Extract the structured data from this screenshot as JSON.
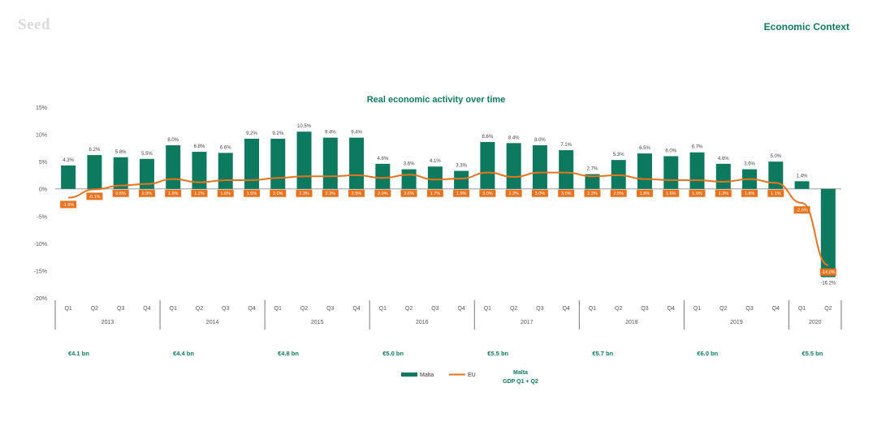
{
  "header": {
    "brand": "Seed",
    "section": "Economic Context"
  },
  "colors": {
    "malta": "#0d7a5f",
    "eu": "#e8731f",
    "axis": "#555555",
    "grid": "#cccccc"
  },
  "chart_data": {
    "type": "bar",
    "title": "Real economic activity over time",
    "xlabel": "",
    "ylabel": "",
    "ylim": [
      -20,
      15
    ],
    "yticks": [
      "15%",
      "10%",
      "5%",
      "0%",
      "-5%",
      "-10%",
      "-15%",
      "-20%"
    ],
    "categories": [
      "Q1",
      "Q2",
      "Q3",
      "Q4",
      "Q1",
      "Q2",
      "Q3",
      "Q4",
      "Q1",
      "Q2",
      "Q3",
      "Q4",
      "Q1",
      "Q2",
      "Q3",
      "Q4",
      "Q1",
      "Q2",
      "Q3",
      "Q4",
      "Q1",
      "Q2",
      "Q3",
      "Q4",
      "Q1",
      "Q2",
      "Q3",
      "Q4",
      "Q1",
      "Q2"
    ],
    "years": [
      "2013",
      "2014",
      "2015",
      "2016",
      "2017",
      "2018",
      "2019",
      "2020"
    ],
    "gdp_labels": [
      "€4.1 bn",
      "€4.4 bn",
      "€4.8 bn",
      "€5.0 bn",
      "€5.5 bn",
      "€5.7 bn",
      "€6.0 bn",
      "€5.5 bn"
    ],
    "series": [
      {
        "name": "Malta",
        "kind": "bar",
        "values": [
          4.3,
          6.2,
          5.8,
          5.5,
          8.0,
          6.8,
          6.6,
          9.2,
          9.2,
          10.5,
          9.4,
          9.4,
          4.6,
          3.6,
          4.1,
          3.3,
          8.6,
          8.4,
          8.0,
          7.1,
          2.7,
          5.3,
          6.5,
          6.0,
          6.7,
          4.6,
          3.6,
          5.0,
          1.4,
          -16.2
        ],
        "labels": [
          "4.3%",
          "6.2%",
          "5.8%",
          "5.5%",
          "8.0%",
          "6.8%",
          "6.6%",
          "9.2%",
          "9.2%",
          "10.5%",
          "9.4%",
          "9.4%",
          "4.6%",
          "3.6%",
          "4.1%",
          "3.3%",
          "8.6%",
          "8.4%",
          "8.0%",
          "7.1%",
          "2.7%",
          "5.3%",
          "6.5%",
          "6.0%",
          "6.7%",
          "4.6%",
          "3.6%",
          "5.0%",
          "1.4%",
          "-16.2%"
        ]
      },
      {
        "name": "EU",
        "kind": "line",
        "values": [
          -1.6,
          -0.1,
          0.6,
          0.9,
          1.8,
          1.2,
          1.6,
          1.6,
          2.0,
          2.3,
          2.3,
          2.5,
          2.0,
          2.6,
          1.7,
          1.9,
          3.0,
          2.2,
          3.0,
          3.0,
          2.3,
          2.5,
          1.8,
          1.6,
          1.6,
          1.3,
          1.8,
          1.1,
          -2.6,
          -14.0
        ],
        "labels": [
          "-1.6%",
          "-0.1%",
          "0.6%",
          "0.9%",
          "1.8%",
          "1.2%",
          "1.6%",
          "1.6%",
          "2.0%",
          "2.3%",
          "2.3%",
          "2.5%",
          "2.0%",
          "2.6%",
          "1.7%",
          "1.9%",
          "3.0%",
          "2.2%",
          "3.0%",
          "3.0%",
          "2.3%",
          "2.5%",
          "1.8%",
          "1.6%",
          "1.6%",
          "1.3%",
          "1.8%",
          "1.1%",
          "-2.6%",
          "-14.0%"
        ]
      }
    ],
    "legend": {
      "position": "bottom",
      "malta_label": "Malta",
      "eu_label": "EU",
      "note_line1": "Malta",
      "note_line2": "GDP Q1 + Q2"
    }
  }
}
